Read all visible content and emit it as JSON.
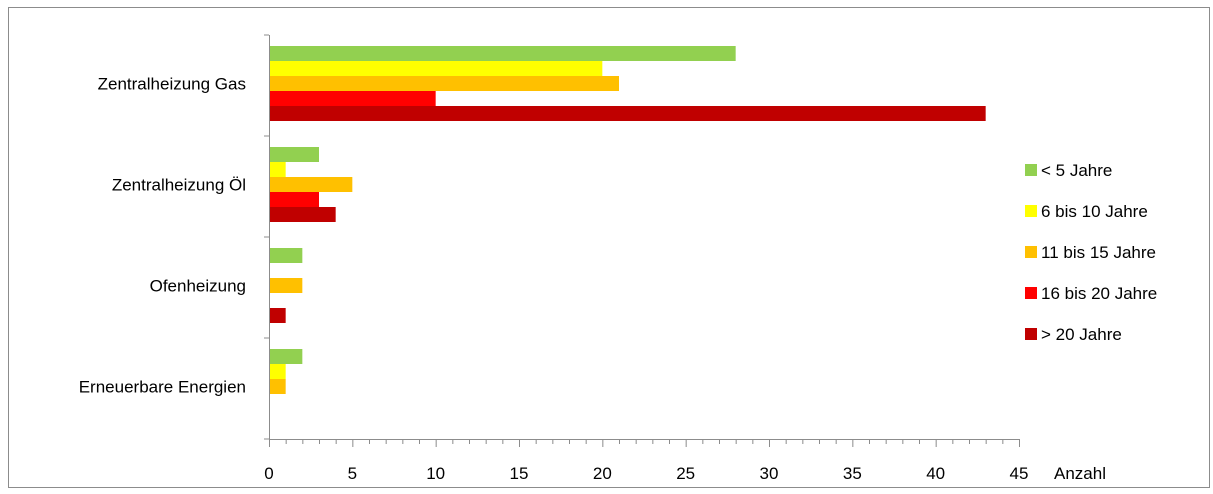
{
  "chart_data": {
    "type": "bar",
    "orientation": "horizontal",
    "categories": [
      "Zentralheizung Gas",
      "Zentralheizung Öl",
      "Ofenheizung",
      "Erneuerbare Energien"
    ],
    "series": [
      {
        "name": "< 5 Jahre",
        "color": "#92D050",
        "values": [
          28,
          3,
          2,
          2
        ]
      },
      {
        "name": "6 bis 10 Jahre",
        "color": "#FFFF00",
        "values": [
          20,
          1,
          0,
          1
        ]
      },
      {
        "name": "11 bis 15 Jahre",
        "color": "#FFC000",
        "values": [
          21,
          5,
          2,
          1
        ]
      },
      {
        "name": "16 bis 20 Jahre",
        "color": "#FF0000",
        "values": [
          10,
          3,
          0,
          0
        ]
      },
      {
        "name": "> 20 Jahre",
        "color": "#C00000",
        "values": [
          43,
          4,
          1,
          0
        ]
      }
    ],
    "xlabel": "Anzahl",
    "xlim": [
      0,
      45
    ],
    "xticks": [
      "0",
      "5",
      "10",
      "15",
      "20",
      "25",
      "30",
      "35",
      "40",
      "45"
    ],
    "grid": false,
    "legend_position": "right"
  }
}
